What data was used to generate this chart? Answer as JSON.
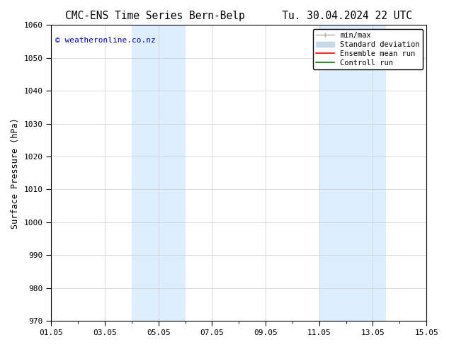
{
  "title_left": "CMC-ENS Time Series Bern-Belp",
  "title_right": "Tu. 30.04.2024 22 UTC",
  "ylabel": "Surface Pressure (hPa)",
  "ylim": [
    970,
    1060
  ],
  "yticks": [
    970,
    980,
    990,
    1000,
    1010,
    1020,
    1030,
    1040,
    1050,
    1060
  ],
  "xtick_labels": [
    "01.05",
    "03.05",
    "05.05",
    "07.05",
    "09.05",
    "11.05",
    "13.05",
    "15.05"
  ],
  "xtick_positions": [
    0,
    2,
    4,
    6,
    8,
    10,
    12,
    14
  ],
  "xlim": [
    0,
    14
  ],
  "shaded_regions": [
    {
      "x_start": 3.0,
      "x_end": 5.0,
      "color": "#ddeeff"
    },
    {
      "x_start": 10.0,
      "x_end": 12.5,
      "color": "#ddeeff"
    }
  ],
  "watermark_text": "© weatheronline.co.nz",
  "watermark_color": "#0000bb",
  "legend_items": [
    {
      "label": "min/max",
      "color": "#aaaaaa",
      "lw": 1.0
    },
    {
      "label": "Standard deviation",
      "color": "#c5d8ea",
      "lw": 7
    },
    {
      "label": "Ensemble mean run",
      "color": "red",
      "lw": 1.2
    },
    {
      "label": "Controll run",
      "color": "green",
      "lw": 1.2
    }
  ],
  "bg_color": "#ffffff",
  "grid_color": "#cccccc",
  "title_fontsize": 10.5,
  "tick_fontsize": 8,
  "ylabel_fontsize": 8.5,
  "legend_fontsize": 7.5,
  "watermark_fontsize": 8
}
